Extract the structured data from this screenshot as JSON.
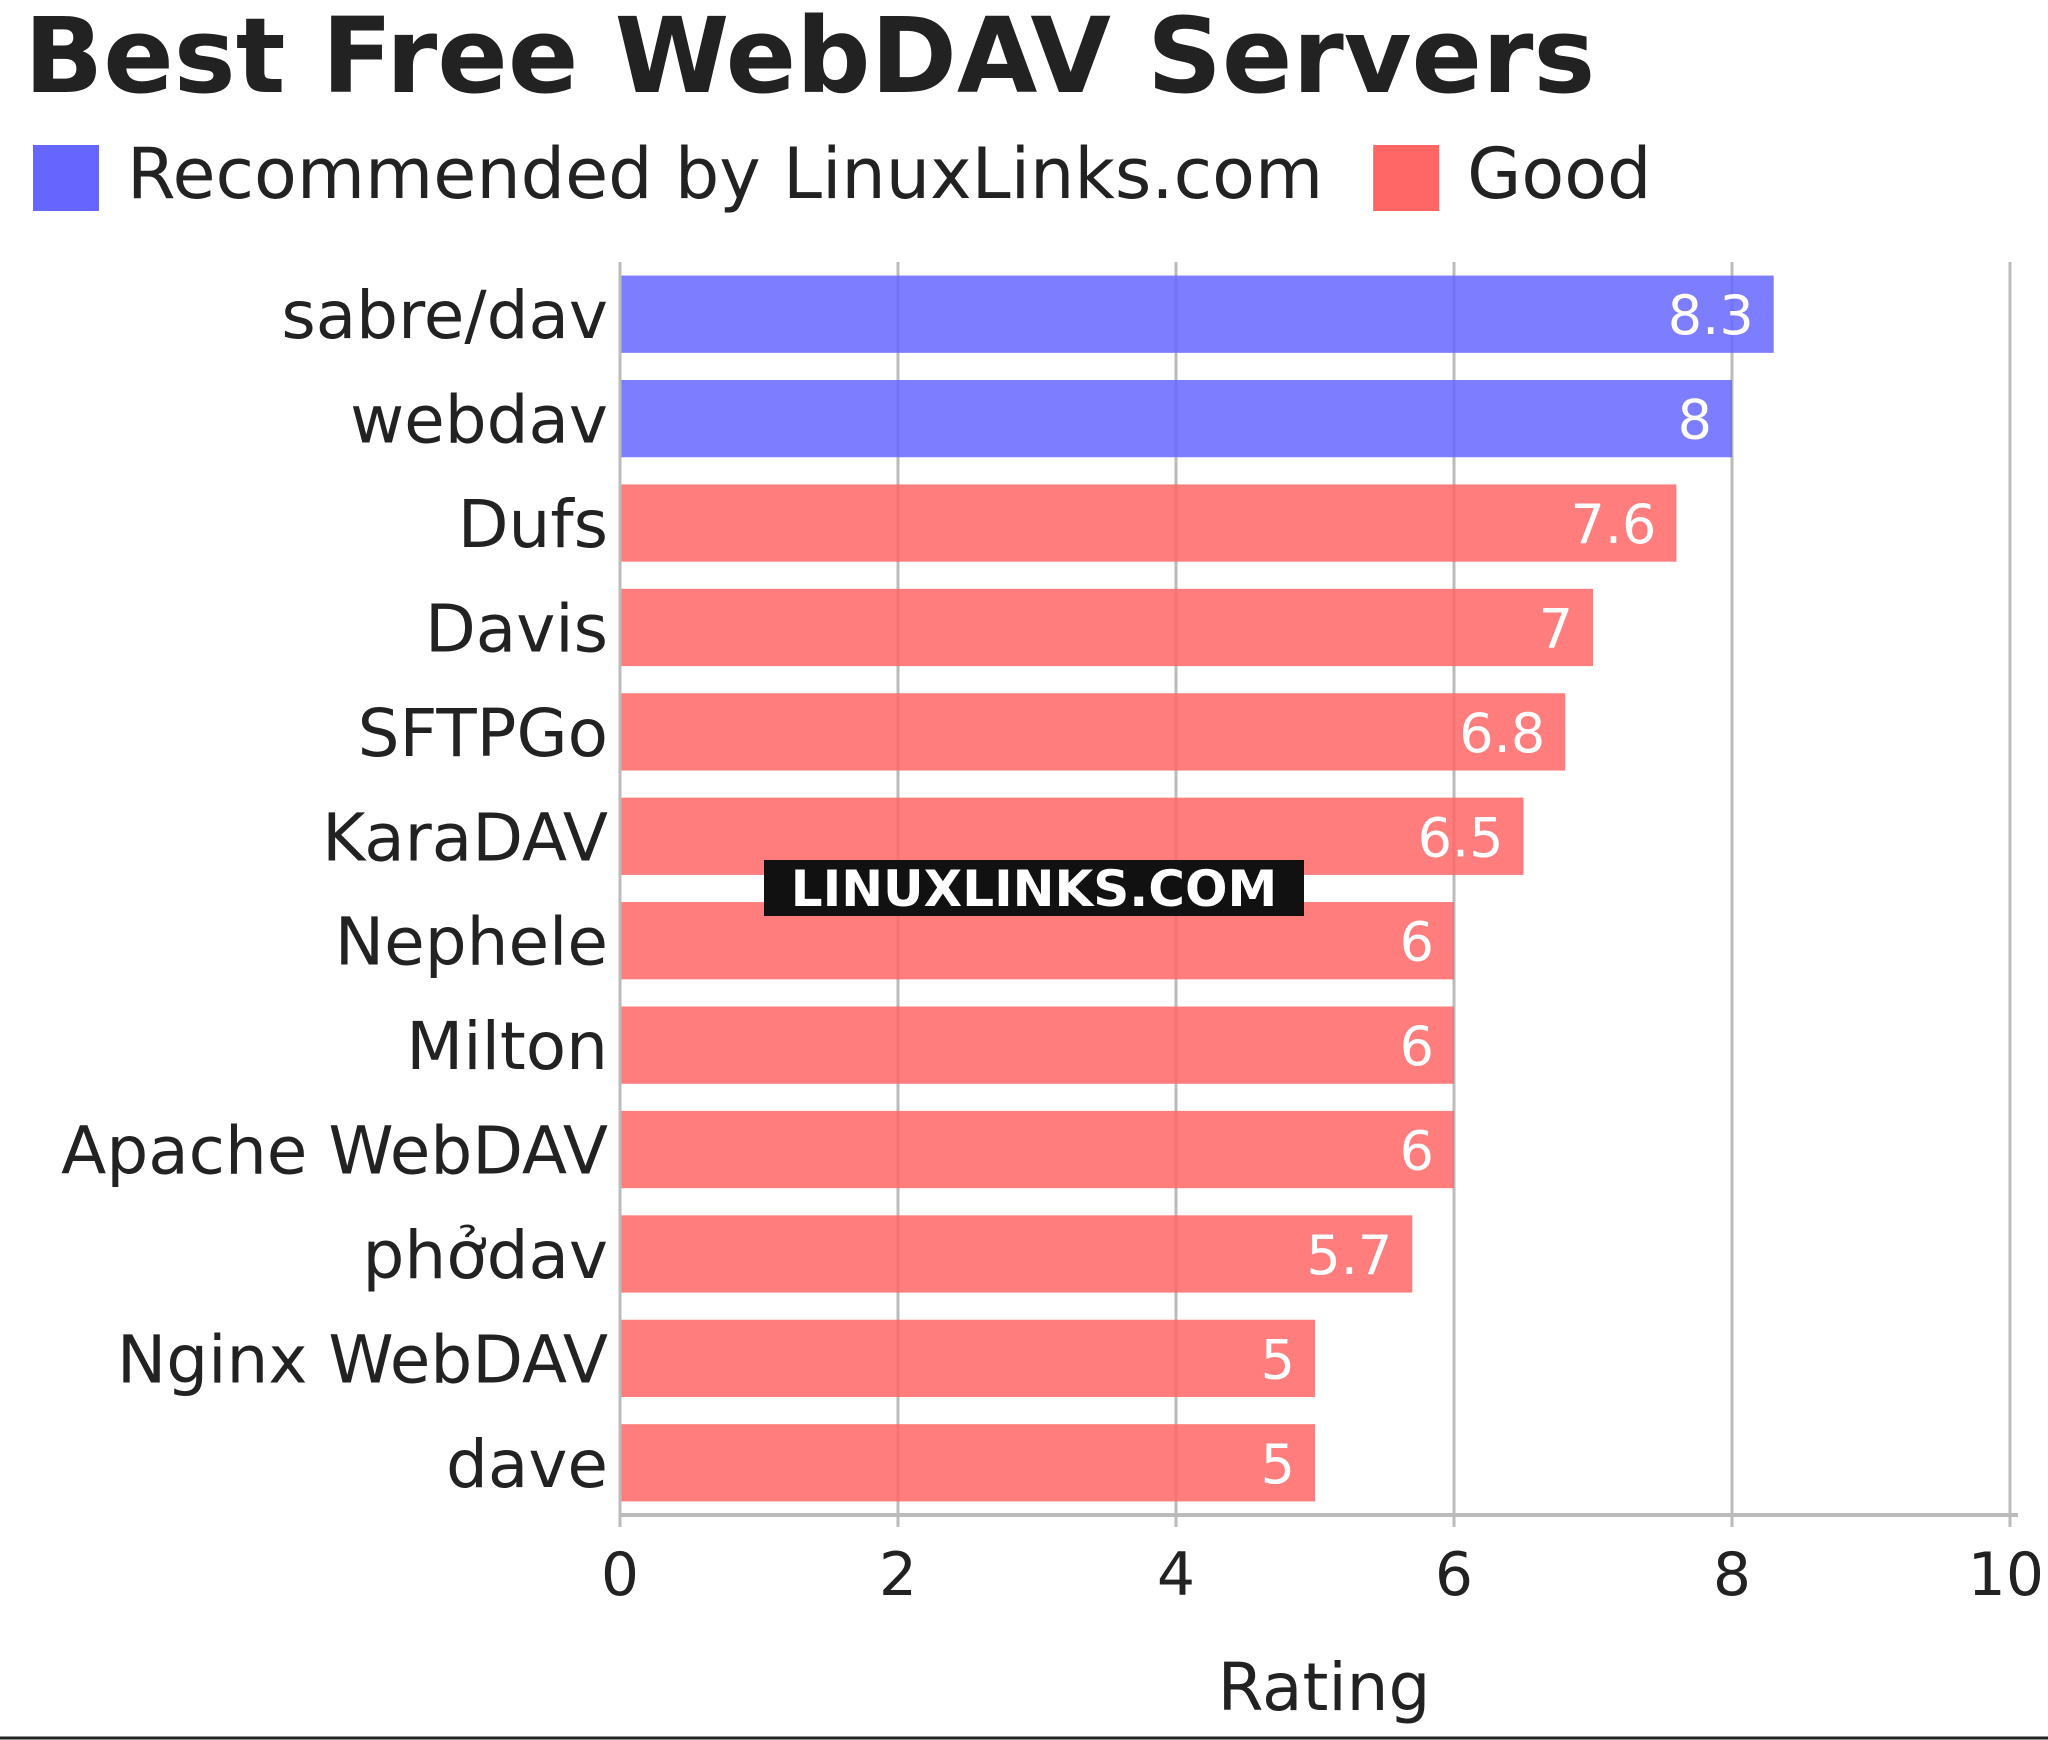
{
  "chart_data": {
    "type": "bar",
    "orientation": "horizontal",
    "title": "Best Free WebDAV Servers",
    "xlabel": "Rating",
    "ylabel": "",
    "xlim": [
      0,
      10
    ],
    "x_ticks": [
      0,
      2,
      4,
      6,
      8,
      10
    ],
    "grid": true,
    "legend_placement": "top-left",
    "legend": [
      {
        "name": "Recommended by LinuxLinks.com",
        "color": "#6666ff"
      },
      {
        "name": "Good",
        "color": "#ff6666"
      }
    ],
    "categories": [
      "sabre/dav",
      "webdav",
      "Dufs",
      "Davis",
      "SFTPGo",
      "KaraDAV",
      "Nephele",
      "Milton",
      "Apache WebDAV",
      "phởdav",
      "Nginx WebDAV",
      "dave"
    ],
    "values": [
      8.3,
      8,
      7.6,
      7,
      6.8,
      6.5,
      6,
      6,
      6,
      5.7,
      5,
      5
    ],
    "value_labels": [
      "8.3",
      "8",
      "7.6",
      "7",
      "6.8",
      "6.5",
      "6",
      "6",
      "6",
      "5.7",
      "5",
      "5"
    ],
    "groups": [
      "Recommended by LinuxLinks.com",
      "Recommended by LinuxLinks.com",
      "Good",
      "Good",
      "Good",
      "Good",
      "Good",
      "Good",
      "Good",
      "Good",
      "Good",
      "Good"
    ]
  },
  "watermark": "LINUXLINKS.COM"
}
